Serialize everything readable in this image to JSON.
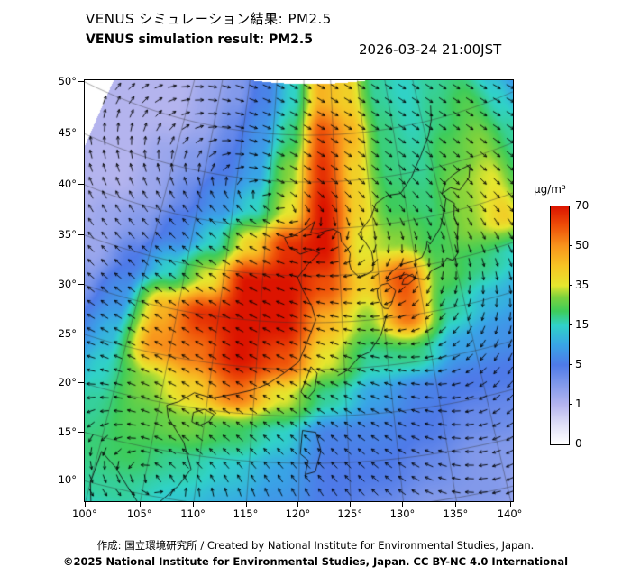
{
  "header": {
    "title_jp": "VENUS シミュレーション結果: PM2.5",
    "title_en": "VENUS simulation result: PM2.5",
    "datetime": "2026-03-24 21:00JST"
  },
  "colorbar": {
    "unit": "μg/m³",
    "tick_labels": [
      "70",
      "50",
      "35",
      "15",
      "5",
      "1",
      "0"
    ],
    "value_breaks": [
      0,
      1,
      5,
      15,
      35,
      50,
      70
    ],
    "stops": [
      {
        "p": 0.0,
        "c": "#ffffff"
      },
      {
        "p": 0.09,
        "c": "#dcdcf6"
      },
      {
        "p": 0.167,
        "c": "#b4b4ee"
      },
      {
        "p": 0.26,
        "c": "#7c96ea"
      },
      {
        "p": 0.333,
        "c": "#4e7ae8"
      },
      {
        "p": 0.42,
        "c": "#38a6e6"
      },
      {
        "p": 0.5,
        "c": "#30d2c8"
      },
      {
        "p": 0.56,
        "c": "#3ecc5a"
      },
      {
        "p": 0.62,
        "c": "#7ed23c"
      },
      {
        "p": 0.667,
        "c": "#e6e62e"
      },
      {
        "p": 0.75,
        "c": "#f6c424"
      },
      {
        "p": 0.833,
        "c": "#f8941c"
      },
      {
        "p": 0.92,
        "c": "#ee4e08"
      },
      {
        "p": 1.0,
        "c": "#dc1400"
      }
    ]
  },
  "map": {
    "lat_ticks": [
      "50°",
      "45°",
      "40°",
      "35°",
      "30°",
      "25°",
      "20°",
      "15°",
      "10°"
    ],
    "lat_values": [
      50,
      45,
      40,
      35,
      30,
      25,
      20,
      15,
      10
    ],
    "lon_ticks": [
      "100°",
      "105°",
      "110°",
      "115°",
      "120°",
      "125°",
      "130°",
      "135°",
      "140°"
    ],
    "lon_values": [
      100,
      105,
      110,
      115,
      120,
      125,
      130,
      135,
      140
    ],
    "field": {
      "lon_start": 88,
      "lon_step": 5,
      "lat_start": 54,
      "lat_step": -4,
      "values": [
        [
          1,
          1,
          1,
          2,
          3,
          6,
          15,
          45,
          40,
          18,
          15,
          18,
          20,
          12,
          6
        ],
        [
          1,
          1,
          1,
          2,
          4,
          8,
          20,
          60,
          45,
          20,
          16,
          20,
          25,
          15,
          8
        ],
        [
          1,
          1,
          2,
          3,
          5,
          10,
          30,
          65,
          40,
          20,
          18,
          25,
          30,
          18,
          8
        ],
        [
          1,
          1,
          2,
          4,
          8,
          15,
          35,
          70,
          40,
          22,
          20,
          30,
          35,
          18,
          8
        ],
        [
          1,
          2,
          3,
          6,
          15,
          40,
          65,
          70,
          35,
          30,
          22,
          30,
          40,
          15,
          6
        ],
        [
          1,
          2,
          5,
          15,
          35,
          70,
          70,
          60,
          40,
          60,
          25,
          20,
          15,
          8,
          4
        ],
        [
          2,
          3,
          8,
          45,
          65,
          70,
          70,
          45,
          30,
          55,
          18,
          12,
          10,
          5,
          3
        ],
        [
          2,
          4,
          12,
          50,
          55,
          70,
          60,
          35,
          18,
          20,
          10,
          8,
          6,
          3,
          2
        ],
        [
          3,
          6,
          15,
          30,
          40,
          55,
          35,
          18,
          10,
          6,
          5,
          5,
          4,
          3,
          2
        ],
        [
          4,
          8,
          18,
          25,
          28,
          22,
          15,
          6,
          6,
          5,
          4,
          4,
          3,
          2,
          2
        ],
        [
          5,
          10,
          20,
          22,
          18,
          14,
          10,
          5,
          5,
          4,
          3,
          3,
          3,
          2,
          1
        ],
        [
          4,
          12,
          18,
          18,
          14,
          11,
          8,
          5,
          4,
          3,
          3,
          2,
          2,
          1,
          1
        ],
        [
          3,
          8,
          12,
          14,
          11,
          9,
          7,
          4,
          3,
          3,
          2,
          2,
          2,
          1,
          1
        ]
      ]
    }
  },
  "footer": {
    "line1": "作成: 国立環境研究所 / Created by National Institute for Environmental Studies, Japan.",
    "line2": "©2025 National Institute for Environmental Studies, Japan. CC BY-NC 4.0 International"
  }
}
